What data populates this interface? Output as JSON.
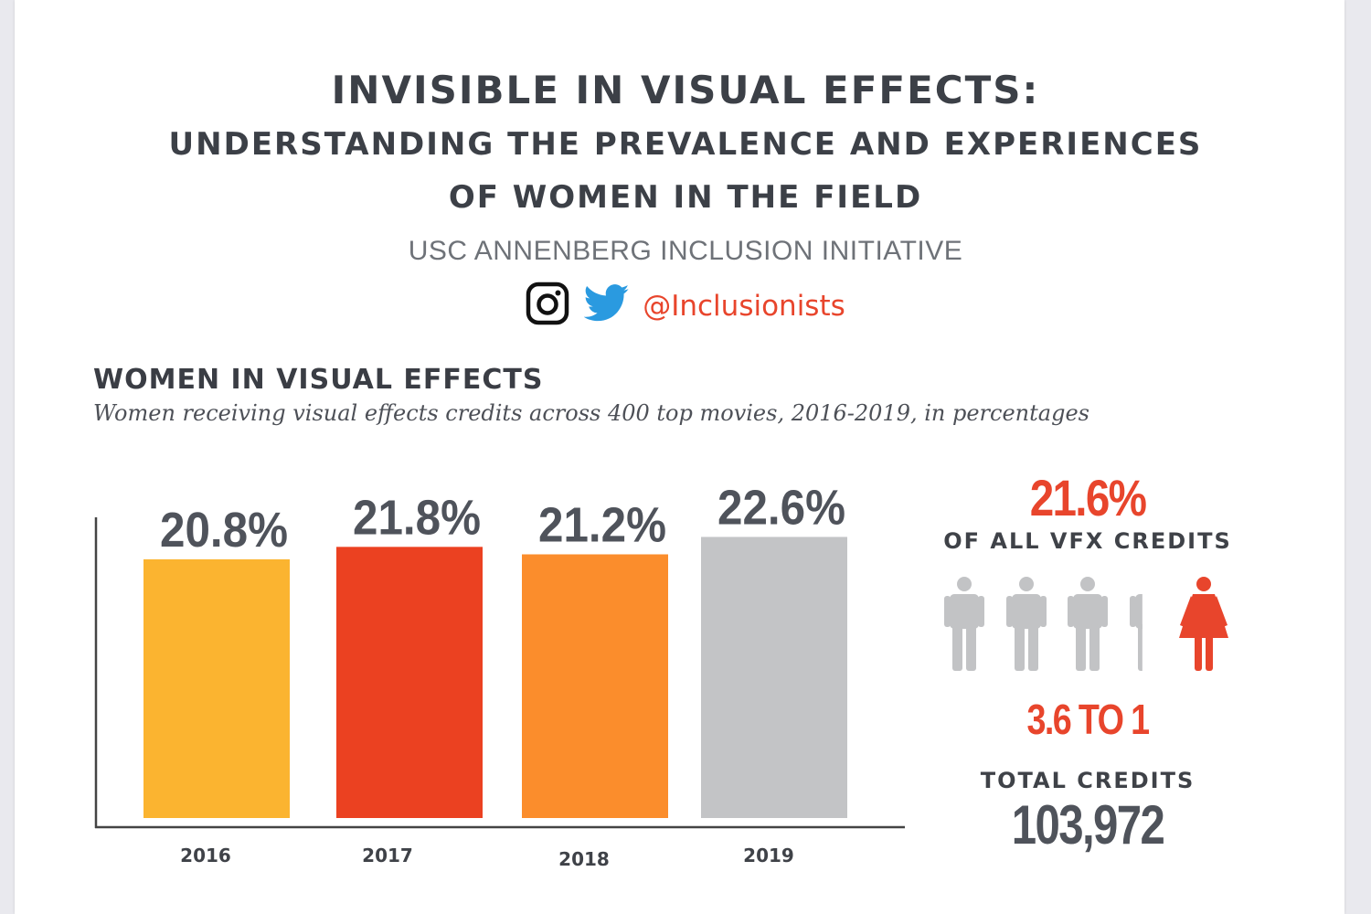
{
  "header": {
    "title_line1": "INVISIBLE IN VISUAL EFFECTS:",
    "title_line2": "UNDERSTANDING THE PREVALENCE AND EXPERIENCES",
    "title_line3": "OF WOMEN IN THE FIELD",
    "organization": "USC ANNENBERG INCLUSION INITIATIVE",
    "social": {
      "icons": [
        "instagram-icon",
        "twitter-icon"
      ],
      "handle": "@Inclusionists",
      "handle_color": "#e8452c"
    }
  },
  "section": {
    "title": "WOMEN IN VISUAL EFFECTS",
    "subtitle": "Women receiving visual effects credits across 400 top movies, 2016-2019, in percentages"
  },
  "chart_data": {
    "type": "bar",
    "title": "WOMEN IN VISUAL EFFECTS",
    "subtitle": "Women receiving visual effects credits across 400 top movies, 2016-2019, in percentages",
    "categories": [
      "2016",
      "2017",
      "2018",
      "2019"
    ],
    "values": [
      20.8,
      21.8,
      21.2,
      22.6
    ],
    "data_labels": [
      "20.8%",
      "21.8%",
      "21.2%",
      "22.6%"
    ],
    "colors": [
      "#fbb430",
      "#eb4121",
      "#fb8d2c",
      "#c3c4c6"
    ],
    "xlabel": "",
    "ylabel": "",
    "ylim": [
      0,
      23
    ],
    "grid": false,
    "legend": "none"
  },
  "summary": {
    "overall_pct": "21.6%",
    "overall_label": "OF ALL VFX CREDITS",
    "ratio": "3.6 TO 1",
    "men_icons": 3.6,
    "women_icons": 1,
    "men_color": "#c2c3c5",
    "women_color": "#e8452c",
    "total_label": "TOTAL CREDITS",
    "total_value": "103,972"
  }
}
